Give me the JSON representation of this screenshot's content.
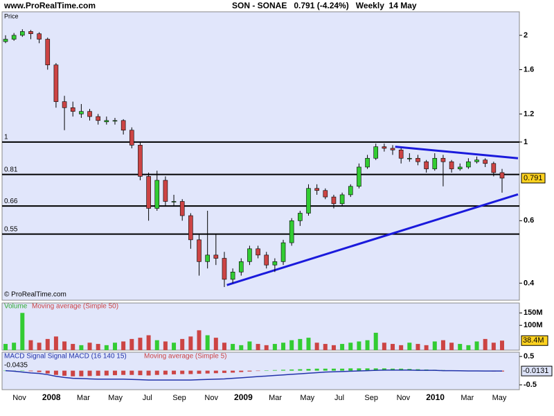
{
  "header": {
    "site": "www.ProRealTime.com",
    "title": "SON - SONAE   0.791 (-4.24%)   Weekly  14 May"
  },
  "chart_data": [
    {
      "type": "candlestick",
      "label": "Price",
      "log_scale": true,
      "ylim": [
        0.358,
        2.33
      ],
      "yticks": [
        0.4,
        0.6,
        1,
        1.2,
        1.6,
        2
      ],
      "up_color": "#33cc33",
      "down_color": "#cc4444",
      "candles": [
        [
          1.92,
          2.0,
          1.9,
          1.95
        ],
        [
          1.95,
          2.03,
          1.93,
          2.0
        ],
        [
          2.0,
          2.08,
          1.98,
          2.05
        ],
        [
          2.05,
          2.07,
          1.95,
          2.02
        ],
        [
          2.02,
          2.04,
          1.9,
          1.95
        ],
        [
          1.95,
          1.97,
          1.6,
          1.65
        ],
        [
          1.65,
          1.67,
          1.25,
          1.3
        ],
        [
          1.3,
          1.35,
          1.08,
          1.25
        ],
        [
          1.25,
          1.3,
          1.18,
          1.22
        ],
        [
          1.2,
          1.28,
          1.17,
          1.22
        ],
        [
          1.22,
          1.24,
          1.15,
          1.18
        ],
        [
          1.18,
          1.2,
          1.12,
          1.15
        ],
        [
          1.14,
          1.18,
          1.12,
          1.15
        ],
        [
          1.15,
          1.17,
          1.12,
          1.15
        ],
        [
          1.15,
          1.16,
          1.05,
          1.08
        ],
        [
          1.08,
          1.1,
          0.96,
          0.98
        ],
        [
          0.98,
          1.0,
          0.78,
          0.8
        ],
        [
          0.8,
          0.82,
          0.6,
          0.65
        ],
        [
          0.65,
          0.83,
          0.64,
          0.78
        ],
        [
          0.78,
          0.8,
          0.66,
          0.68
        ],
        [
          0.68,
          0.71,
          0.66,
          0.68
        ],
        [
          0.68,
          0.69,
          0.6,
          0.62
        ],
        [
          0.62,
          0.63,
          0.5,
          0.53
        ],
        [
          0.53,
          0.55,
          0.42,
          0.46
        ],
        [
          0.46,
          0.64,
          0.44,
          0.48
        ],
        [
          0.48,
          0.55,
          0.45,
          0.47
        ],
        [
          0.47,
          0.49,
          0.39,
          0.41
        ],
        [
          0.41,
          0.44,
          0.4,
          0.43
        ],
        [
          0.43,
          0.47,
          0.42,
          0.46
        ],
        [
          0.46,
          0.51,
          0.45,
          0.5
        ],
        [
          0.5,
          0.51,
          0.47,
          0.48
        ],
        [
          0.48,
          0.49,
          0.44,
          0.45
        ],
        [
          0.45,
          0.47,
          0.43,
          0.46
        ],
        [
          0.46,
          0.53,
          0.45,
          0.52
        ],
        [
          0.52,
          0.61,
          0.51,
          0.6
        ],
        [
          0.6,
          0.64,
          0.58,
          0.63
        ],
        [
          0.63,
          0.76,
          0.62,
          0.74
        ],
        [
          0.74,
          0.76,
          0.71,
          0.73
        ],
        [
          0.73,
          0.74,
          0.69,
          0.7
        ],
        [
          0.7,
          0.71,
          0.65,
          0.67
        ],
        [
          0.67,
          0.72,
          0.66,
          0.71
        ],
        [
          0.71,
          0.76,
          0.7,
          0.75
        ],
        [
          0.75,
          0.87,
          0.74,
          0.85
        ],
        [
          0.85,
          0.92,
          0.84,
          0.9
        ],
        [
          0.9,
          0.99,
          0.89,
          0.97
        ],
        [
          0.97,
          0.99,
          0.94,
          0.96
        ],
        [
          0.96,
          0.98,
          0.92,
          0.95
        ],
        [
          0.95,
          0.96,
          0.87,
          0.9
        ],
        [
          0.9,
          0.93,
          0.88,
          0.9
        ],
        [
          0.9,
          0.92,
          0.86,
          0.88
        ],
        [
          0.88,
          0.89,
          0.82,
          0.84
        ],
        [
          0.84,
          0.93,
          0.83,
          0.9
        ],
        [
          0.9,
          0.92,
          0.75,
          0.88
        ],
        [
          0.88,
          0.89,
          0.82,
          0.84
        ],
        [
          0.84,
          0.87,
          0.83,
          0.85
        ],
        [
          0.85,
          0.9,
          0.84,
          0.88
        ],
        [
          0.88,
          0.91,
          0.87,
          0.89
        ],
        [
          0.89,
          0.9,
          0.85,
          0.87
        ],
        [
          0.87,
          0.88,
          0.8,
          0.82
        ],
        [
          0.82,
          0.84,
          0.72,
          0.791
        ]
      ],
      "levels": [
        1,
        0.81,
        0.66,
        0.55
      ],
      "trendlines": [
        {
          "color": "#1a1adc",
          "values": [
            0.97,
            0.9
          ]
        },
        {
          "color": "#1a1adc",
          "values": [
            0.395,
            0.712
          ]
        }
      ],
      "watermark": "© ProRealTime.com",
      "x_labels": [
        "Nov",
        "2008",
        "Mar",
        "May",
        "Jul",
        "Sep",
        "Nov",
        "2009",
        "Mar",
        "May",
        "Jul",
        "Sep",
        "Nov",
        "2010",
        "Mar",
        "May"
      ]
    },
    {
      "type": "bar",
      "label": "Volume",
      "ma_label": "Moving average (Simple 50)",
      "ylim": [
        0,
        190000000
      ],
      "yticks": [
        {
          "value": 150000000,
          "label": "150M"
        },
        {
          "value": 100000000,
          "label": "100M"
        }
      ],
      "values": [
        25000000,
        30000000,
        150000000,
        40000000,
        30000000,
        45000000,
        55000000,
        35000000,
        25000000,
        20000000,
        30000000,
        25000000,
        20000000,
        30000000,
        35000000,
        45000000,
        50000000,
        60000000,
        40000000,
        35000000,
        30000000,
        45000000,
        55000000,
        80000000,
        60000000,
        50000000,
        30000000,
        25000000,
        20000000,
        35000000,
        25000000,
        20000000,
        25000000,
        30000000,
        40000000,
        45000000,
        50000000,
        30000000,
        25000000,
        20000000,
        25000000,
        30000000,
        35000000,
        40000000,
        70000000,
        30000000,
        25000000,
        20000000,
        30000000,
        25000000,
        20000000,
        35000000,
        40000000,
        30000000,
        25000000,
        20000000,
        35000000,
        45000000,
        30000000,
        38400000
      ],
      "last_value_label": "38.4M"
    },
    {
      "type": "macd",
      "label": "MACD Signal Signal MACD (16 140 15)",
      "ma_label": "Moving average (Simple 5)",
      "signal_label": "-0.0435",
      "ylim": [
        -0.67,
        0.65
      ],
      "yticks": [
        0.5,
        -0.5
      ],
      "color": "#2233aa",
      "histogram": [
        0,
        0,
        0,
        -0.02,
        -0.05,
        -0.1,
        -0.15,
        -0.18,
        -0.2,
        -0.2,
        -0.19,
        -0.18,
        -0.17,
        -0.16,
        -0.15,
        -0.15,
        -0.16,
        -0.17,
        -0.15,
        -0.14,
        -0.13,
        -0.12,
        -0.12,
        -0.11,
        -0.1,
        -0.09,
        -0.08,
        -0.07,
        -0.05,
        -0.03,
        -0.01,
        0.01,
        0.02,
        0.03,
        0.04,
        0.05,
        0.06,
        0.07,
        0.07,
        0.07,
        0.07,
        0.08,
        0.08,
        0.08,
        0.08,
        0.08,
        0.07,
        0.07,
        0.06,
        0.05,
        0.04,
        0.03,
        0.02,
        0.01,
        0,
        -0.01,
        -0.02,
        -0.02,
        -0.03,
        -0.03
      ],
      "values": [
        0,
        -0.02,
        -0.05,
        -0.08,
        -0.1,
        -0.14,
        -0.2,
        -0.24,
        -0.27,
        -0.28,
        -0.29,
        -0.3,
        -0.3,
        -0.3,
        -0.3,
        -0.31,
        -0.32,
        -0.33,
        -0.33,
        -0.33,
        -0.33,
        -0.33,
        -0.33,
        -0.32,
        -0.31,
        -0.3,
        -0.29,
        -0.27,
        -0.25,
        -0.23,
        -0.21,
        -0.19,
        -0.17,
        -0.15,
        -0.13,
        -0.11,
        -0.09,
        -0.07,
        -0.05,
        -0.04,
        -0.03,
        -0.02,
        -0.01,
        0,
        0.01,
        0.02,
        0.02,
        0.02,
        0.02,
        0.01,
        0.01,
        0.01,
        0,
        0,
        -0.005,
        -0.01,
        -0.01,
        -0.012,
        -0.013,
        -0.0131
      ]
    }
  ]
}
